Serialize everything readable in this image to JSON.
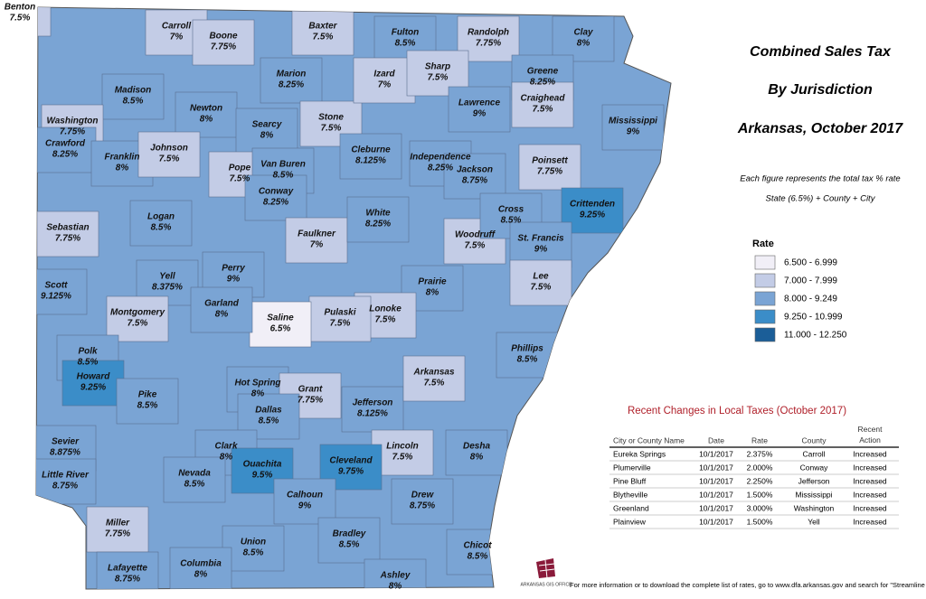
{
  "title": [
    "Combined Sales Tax",
    "By Jurisdiction",
    "Arkansas, October 2017"
  ],
  "notes": [
    "Each figure represents the total tax % rate",
    "State (6.5%) + County + City"
  ],
  "legend": {
    "title": "Rate",
    "items": [
      {
        "label": "6.500 - 6.999",
        "color": "#f1eff7"
      },
      {
        "label": "7.000 - 7.999",
        "color": "#c3cce6"
      },
      {
        "label": "8.000 - 9.249",
        "color": "#7aa4d4"
      },
      {
        "label": "9.250 - 10.999",
        "color": "#3b8dc8"
      },
      {
        "label": "11.000 - 12.250",
        "color": "#1b5e98"
      }
    ]
  },
  "counties": [
    {
      "name": "Benton",
      "rate": "7.5%",
      "class": 1
    },
    {
      "name": "Carroll",
      "rate": "7%",
      "class": 1
    },
    {
      "name": "Boone",
      "rate": "7.75%",
      "class": 1
    },
    {
      "name": "Marion",
      "rate": "8.25%",
      "class": 2
    },
    {
      "name": "Baxter",
      "rate": "7.5%",
      "class": 1
    },
    {
      "name": "Fulton",
      "rate": "8.5%",
      "class": 2
    },
    {
      "name": "Randolph",
      "rate": "7.75%",
      "class": 1
    },
    {
      "name": "Clay",
      "rate": "8%",
      "class": 2
    },
    {
      "name": "Madison",
      "rate": "8.5%",
      "class": 2
    },
    {
      "name": "Washington",
      "rate": "7.75%",
      "class": 1
    },
    {
      "name": "Newton",
      "rate": "8%",
      "class": 2
    },
    {
      "name": "Searcy",
      "rate": "8%",
      "class": 2
    },
    {
      "name": "Stone",
      "rate": "7.5%",
      "class": 1
    },
    {
      "name": "Izard",
      "rate": "7%",
      "class": 1
    },
    {
      "name": "Sharp",
      "rate": "7.5%",
      "class": 1
    },
    {
      "name": "Lawrence",
      "rate": "9%",
      "class": 2
    },
    {
      "name": "Greene",
      "rate": "8.25%",
      "class": 2
    },
    {
      "name": "Craighead",
      "rate": "7.5%",
      "class": 1
    },
    {
      "name": "Mississippi",
      "rate": "9%",
      "class": 2
    },
    {
      "name": "Crawford",
      "rate": "8.25%",
      "class": 2
    },
    {
      "name": "Franklin",
      "rate": "8%",
      "class": 2
    },
    {
      "name": "Johnson",
      "rate": "7.5%",
      "class": 1
    },
    {
      "name": "Pope",
      "rate": "7.5%",
      "class": 1
    },
    {
      "name": "Van Buren",
      "rate": "8.5%",
      "class": 2
    },
    {
      "name": "Cleburne",
      "rate": "8.125%",
      "class": 2
    },
    {
      "name": "Independence",
      "rate": "8.25%",
      "class": 2
    },
    {
      "name": "Jackson",
      "rate": "8.75%",
      "class": 2
    },
    {
      "name": "Poinsett",
      "rate": "7.75%",
      "class": 1
    },
    {
      "name": "Conway",
      "rate": "8.25%",
      "class": 2
    },
    {
      "name": "Sebastian",
      "rate": "7.75%",
      "class": 1
    },
    {
      "name": "Logan",
      "rate": "8.5%",
      "class": 2
    },
    {
      "name": "Faulkner",
      "rate": "7%",
      "class": 1
    },
    {
      "name": "White",
      "rate": "8.25%",
      "class": 2
    },
    {
      "name": "Woodruff",
      "rate": "7.5%",
      "class": 1
    },
    {
      "name": "Cross",
      "rate": "8.5%",
      "class": 2
    },
    {
      "name": "Crittenden",
      "rate": "9.25%",
      "class": 3
    },
    {
      "name": "St. Francis",
      "rate": "9%",
      "class": 2
    },
    {
      "name": "Scott",
      "rate": "9.125%",
      "class": 2
    },
    {
      "name": "Yell",
      "rate": "8.375%",
      "class": 2
    },
    {
      "name": "Perry",
      "rate": "9%",
      "class": 2
    },
    {
      "name": "Prairie",
      "rate": "8%",
      "class": 2
    },
    {
      "name": "Lee",
      "rate": "7.5%",
      "class": 1
    },
    {
      "name": "Lonoke",
      "rate": "7.5%",
      "class": 1
    },
    {
      "name": "Pulaski",
      "rate": "7.5%",
      "class": 1
    },
    {
      "name": "Saline",
      "rate": "6.5%",
      "class": 0
    },
    {
      "name": "Garland",
      "rate": "8%",
      "class": 2
    },
    {
      "name": "Montgomery",
      "rate": "7.5%",
      "class": 1
    },
    {
      "name": "Polk",
      "rate": "8.5%",
      "class": 2
    },
    {
      "name": "Howard",
      "rate": "9.25%",
      "class": 3
    },
    {
      "name": "Hot Spring",
      "rate": "8%",
      "class": 2
    },
    {
      "name": "Grant",
      "rate": "7.75%",
      "class": 1
    },
    {
      "name": "Jefferson",
      "rate": "8.125%",
      "class": 2
    },
    {
      "name": "Arkansas",
      "rate": "7.5%",
      "class": 1
    },
    {
      "name": "Phillips",
      "rate": "8.5%",
      "class": 2
    },
    {
      "name": "Pike",
      "rate": "8.5%",
      "class": 2
    },
    {
      "name": "Dallas",
      "rate": "8.5%",
      "class": 2
    },
    {
      "name": "Sevier",
      "rate": "8.875%",
      "class": 2
    },
    {
      "name": "Lincoln",
      "rate": "7.5%",
      "class": 1
    },
    {
      "name": "Desha",
      "rate": "8%",
      "class": 2
    },
    {
      "name": "Clark",
      "rate": "8%",
      "class": 2
    },
    {
      "name": "Ouachita",
      "rate": "9.5%",
      "class": 3
    },
    {
      "name": "Cleveland",
      "rate": "9.75%",
      "class": 3
    },
    {
      "name": "Little River",
      "rate": "8.75%",
      "class": 2
    },
    {
      "name": "Nevada",
      "rate": "8.5%",
      "class": 2
    },
    {
      "name": "Calhoun",
      "rate": "9%",
      "class": 2
    },
    {
      "name": "Drew",
      "rate": "8.75%",
      "class": 2
    },
    {
      "name": "Miller",
      "rate": "7.75%",
      "class": 1
    },
    {
      "name": "Union",
      "rate": "8.5%",
      "class": 2
    },
    {
      "name": "Bradley",
      "rate": "8.5%",
      "class": 2
    },
    {
      "name": "Chicot",
      "rate": "8.5%",
      "class": 2
    },
    {
      "name": "Lafayette",
      "rate": "8.75%",
      "class": 2
    },
    {
      "name": "Columbia",
      "rate": "8%",
      "class": 2
    },
    {
      "name": "Ashley",
      "rate": "8%",
      "class": 2
    }
  ],
  "changes": {
    "title": "Recent Changes in Local Taxes (October 2017)",
    "columns": [
      "City or County Name",
      "Date",
      "Rate",
      "County",
      "Recent Action"
    ],
    "rows": [
      [
        "Eureka Springs",
        "10/1/2017",
        "2.375%",
        "Carroll",
        "Increased"
      ],
      [
        "Plumerville",
        "10/1/2017",
        "2.000%",
        "Conway",
        "Increased"
      ],
      [
        "Pine Bluff",
        "10/1/2017",
        "2.250%",
        "Jefferson",
        "Increased"
      ],
      [
        "Blytheville",
        "10/1/2017",
        "1.500%",
        "Mississippi",
        "Increased"
      ],
      [
        "Greenland",
        "10/1/2017",
        "3.000%",
        "Washington",
        "Increased"
      ],
      [
        "Plainview",
        "10/1/2017",
        "1.500%",
        "Yell",
        "Increased"
      ]
    ]
  },
  "logo": "ARKANSAS GIS OFFICE",
  "footer": "For more information or to download the complete list of rates, go to www.dfa.arkansas.gov and search for \"Streamline Lookup.\""
}
